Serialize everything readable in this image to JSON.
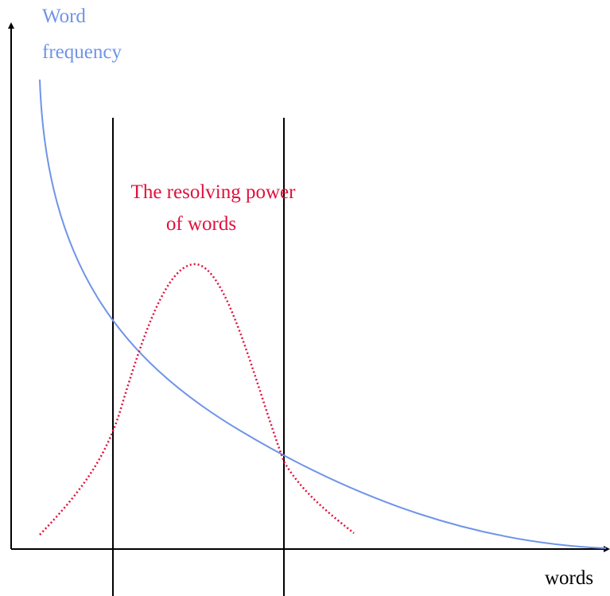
{
  "y_label": [
    "Word",
    "frequency"
  ],
  "annotation": [
    "The resolving power",
    "of words"
  ],
  "x_label": "words"
}
